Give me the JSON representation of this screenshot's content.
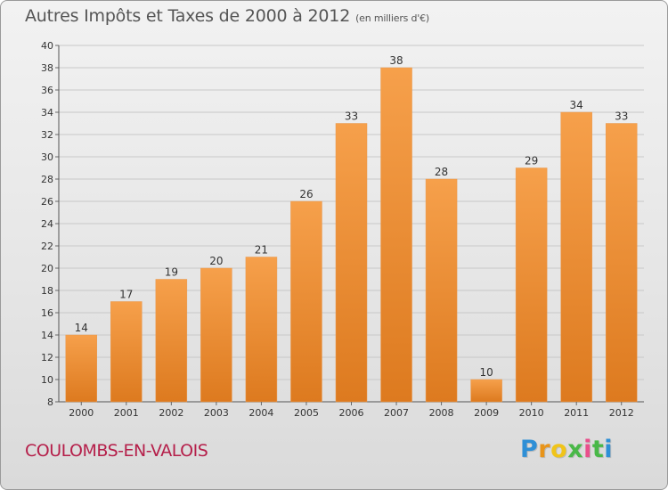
{
  "header": {
    "title": "Autres Impôts et Taxes de 2000 à 2012",
    "unit_note": "(en milliers d'€)"
  },
  "footer": {
    "city": "COULOMBS-EN-VALOIS",
    "logo_letters": [
      "P",
      "r",
      "o",
      "x",
      "i",
      "t",
      "i"
    ]
  },
  "colors": {
    "bar_top": "#f6a04b",
    "bar_bottom": "#dd7a1f",
    "city": "#b51f4a",
    "logo": [
      "#2e8fd6",
      "#e8941a",
      "#f0c419",
      "#49b848",
      "#e94f8c",
      "#49b848",
      "#2e8fd6"
    ]
  },
  "chart_data": {
    "type": "bar",
    "title": "Autres Impôts et Taxes de 2000 à 2012",
    "subtitle": "(en milliers d'€)",
    "categories": [
      "2000",
      "2001",
      "2002",
      "2003",
      "2004",
      "2005",
      "2006",
      "2007",
      "2008",
      "2009",
      "2010",
      "2011",
      "2012"
    ],
    "values": [
      14,
      17,
      19,
      20,
      21,
      26,
      33,
      38,
      28,
      10,
      29,
      34,
      33
    ],
    "ylim": [
      8,
      40
    ],
    "yticks": [
      8,
      10,
      12,
      14,
      16,
      18,
      20,
      22,
      24,
      26,
      28,
      30,
      32,
      34,
      36,
      38,
      40
    ],
    "grid": true,
    "data_labels": true
  }
}
